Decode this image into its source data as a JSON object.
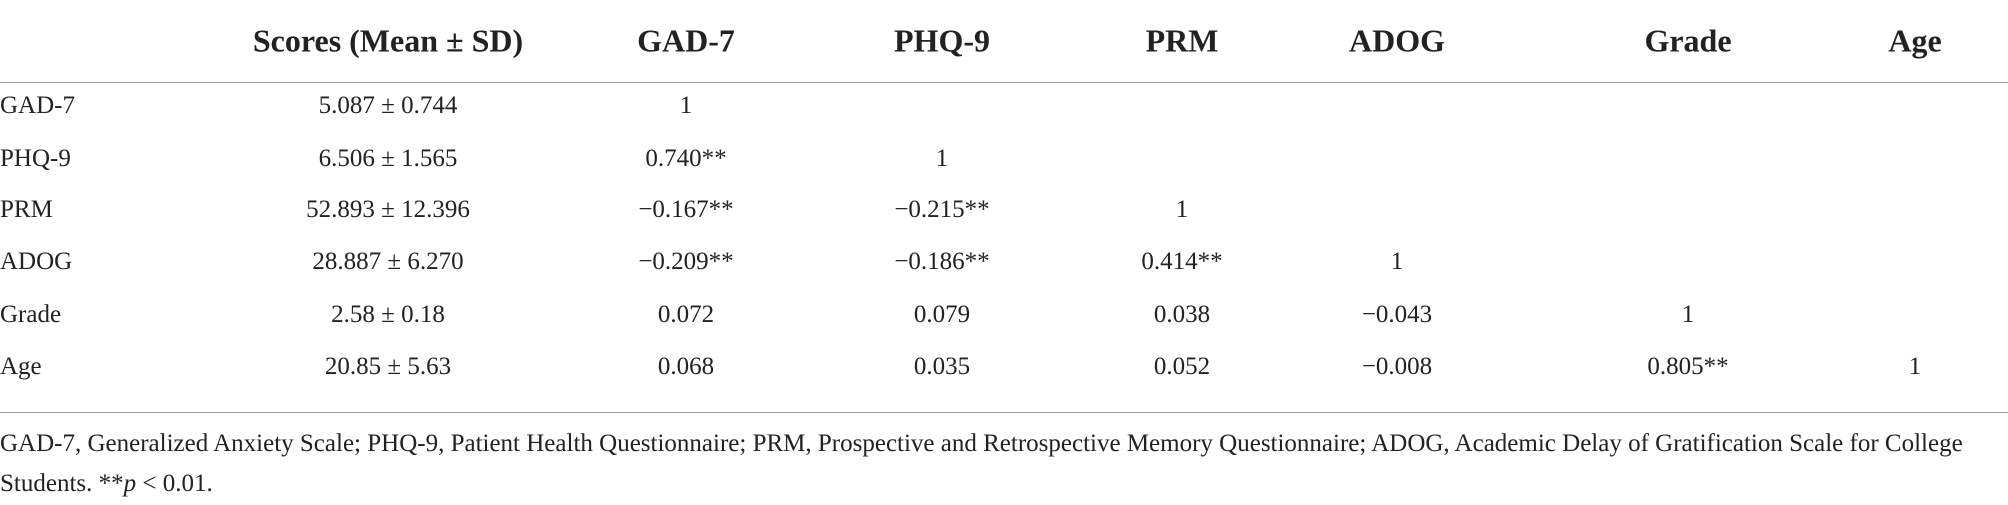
{
  "table": {
    "columns": [
      "Scores (Mean ± SD)",
      "GAD-7",
      "PHQ-9",
      "PRM",
      "ADOG",
      "Grade",
      "Age"
    ],
    "rows": [
      [
        "GAD-7",
        "5.087 ± 0.744",
        "1"
      ],
      [
        "PHQ-9",
        "6.506 ± 1.565",
        "0.740**",
        "1"
      ],
      [
        "PRM",
        "52.893 ± 12.396",
        "−0.167**",
        "−0.215**",
        "1"
      ],
      [
        "ADOG",
        "28.887 ± 6.270",
        "−0.209**",
        "−0.186**",
        "0.414**",
        "1"
      ],
      [
        "Grade",
        "2.58 ± 0.18",
        "0.072",
        "0.079",
        "0.038",
        "−0.043",
        "1"
      ],
      [
        "Age",
        "20.85 ± 5.63",
        "0.068",
        "0.035",
        "0.052",
        "−0.008",
        "0.805**",
        "1"
      ]
    ]
  },
  "footnote": [
    "GAD-7, Generalized Anxiety Scale; PHQ-9, Patient Health Questionnaire; PRM, Prospective and Retrospective Memory Questionnaire; ADOG, Academic Delay of Gratification Scale for College Students. **",
    "p",
    " < 0.01."
  ]
}
